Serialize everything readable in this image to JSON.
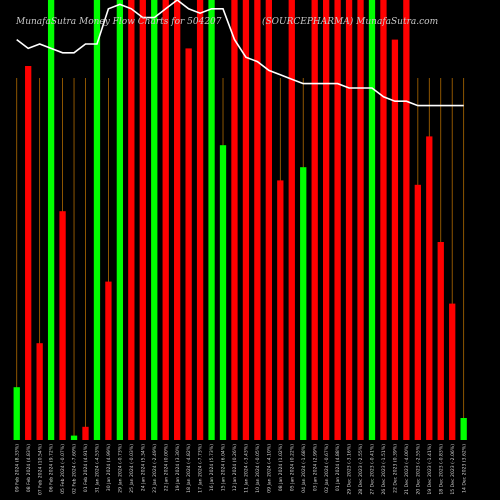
{
  "chart_data": {
    "type": "bar",
    "title_left": "MunafaSutra  Money Flow  Charts for 504207",
    "title_right": "(SOURCEPHARMA)  MunafaSutra.com",
    "colors": {
      "up": "#00ff00",
      "down": "#ff0000",
      "line": "#ffffff",
      "separator": "#b06a00",
      "background": "#000000"
    },
    "ylim": [
      0,
      100
    ],
    "categories": [
      "09 Feb 2024 (8.33%)",
      "08 Feb 2024 (4.83%)",
      "07 Feb 2024 (10.54%)",
      "06 Feb 2024 (9.72%)",
      "05 Feb 2024 (-0.07%)",
      "02 Feb 2024 (-7.60%)",
      "01 Feb 2024 (4.91%)",
      "31 Jan 2024 (-4.53%)",
      "30 Jan 2024 (4.99%)",
      "29 Jan 2024 (-0.73%)",
      "25 Jan 2024 (-0.03%)",
      "24 Jan 2024 (5.34%)",
      "23 Jan 2024 (-2.49%)",
      "22 Jan 2024 (0.00%)",
      "19 Jan 2024 (3.30%)",
      "18 Jan 2024 (-4.82%)",
      "17 Jan 2024 (-7.73%)",
      "16 Jan 2024 (5.73%)",
      "15 Jan 2024 (6.04%)",
      "12 Jan 2024 (0.26%)",
      "11 Jan 2024 (-3.43%)",
      "10 Jan 2024 (-0.05%)",
      "09 Jan 2024 (-4.10%)",
      "08 Jan 2024 (1.02%)",
      "05 Jan 2024 (0.22%)",
      "04 Jan 2024 (-1.68%)",
      "03 Jan 2024 (2.99%)",
      "02 Jan 2024 (-0.67%)",
      "01 Jan 2024 (4.88%)",
      "29 Dec 2023 (-3.16%)",
      "28 Dec 2023 (-2.55%)",
      "27 Dec 2023 (-0.41%)",
      "26 Dec 2023 (-1.51%)",
      "22 Dec 2023 (0.39%)",
      "21 Dec 2023 (-4.00%)",
      "20 Dec 2023 (-2.55%)",
      "19 Dec 2023 (-1.41%)",
      "18 Dec 2023 (-0.83%)",
      "15 Dec 2023 (-2.06%)",
      "14 Dec 2023 (3.62%)"
    ],
    "series": [
      {
        "values": [
          12,
          85,
          22,
          100,
          52,
          1,
          3,
          100,
          36,
          100,
          100,
          100,
          100,
          100,
          100,
          89,
          100,
          100,
          67,
          100,
          100,
          100,
          100,
          59,
          100,
          62,
          100,
          100,
          100,
          100,
          100,
          100,
          100,
          91,
          100,
          58,
          69,
          45,
          31,
          5
        ]
      },
      {
        "values": [
          91,
          89,
          90,
          89,
          88,
          88,
          90,
          90,
          98,
          99,
          98,
          96,
          96,
          98,
          100,
          98,
          97,
          98,
          98,
          91,
          87,
          86,
          84,
          83,
          82,
          81,
          81,
          81,
          81,
          80,
          80,
          80,
          78,
          77,
          77,
          76,
          76,
          76,
          76,
          76
        ]
      }
    ],
    "bar_colors": [
      "up",
      "down",
      "down",
      "up",
      "down",
      "up",
      "down",
      "up",
      "down",
      "up",
      "down",
      "down",
      "up",
      "down",
      "down",
      "down",
      "down",
      "up",
      "up",
      "down",
      "down",
      "down",
      "down",
      "down",
      "down",
      "up",
      "down",
      "down",
      "down",
      "down",
      "down",
      "up",
      "down",
      "down",
      "down",
      "down",
      "down",
      "down",
      "down",
      "up"
    ]
  }
}
